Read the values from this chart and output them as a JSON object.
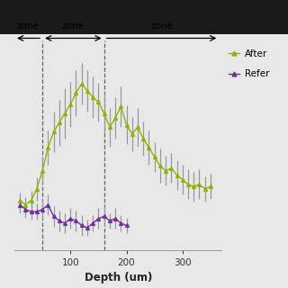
{
  "after_x": [
    10,
    20,
    30,
    40,
    50,
    60,
    70,
    80,
    90,
    100,
    110,
    120,
    130,
    140,
    150,
    160,
    170,
    180,
    190,
    200,
    210,
    220,
    230,
    240,
    250,
    260,
    270,
    280,
    290,
    300,
    310,
    320,
    330,
    340,
    350
  ],
  "after_y": [
    4.5,
    4.3,
    4.5,
    5.0,
    5.8,
    6.8,
    7.5,
    7.9,
    8.3,
    8.7,
    9.2,
    9.6,
    9.3,
    9.0,
    8.8,
    8.3,
    7.7,
    8.1,
    8.6,
    7.8,
    7.4,
    7.7,
    7.2,
    6.8,
    6.4,
    6.0,
    5.8,
    5.9,
    5.6,
    5.4,
    5.2,
    5.1,
    5.2,
    5.0,
    5.1
  ],
  "after_err": [
    0.35,
    0.35,
    0.4,
    0.5,
    0.6,
    0.75,
    0.9,
    1.0,
    1.1,
    1.0,
    1.0,
    0.9,
    0.9,
    0.9,
    0.85,
    0.85,
    0.85,
    0.9,
    0.9,
    0.85,
    0.75,
    0.85,
    0.75,
    0.75,
    0.65,
    0.75,
    0.65,
    0.65,
    0.65,
    0.65,
    0.65,
    0.65,
    0.65,
    0.55,
    0.55
  ],
  "ref_x": [
    10,
    20,
    30,
    40,
    50,
    60,
    70,
    80,
    90,
    100,
    110,
    120,
    130,
    140,
    150,
    160,
    170,
    180,
    190,
    200
  ],
  "ref_y": [
    4.3,
    4.1,
    4.0,
    4.0,
    4.1,
    4.3,
    3.8,
    3.6,
    3.5,
    3.7,
    3.6,
    3.4,
    3.3,
    3.5,
    3.7,
    3.8,
    3.6,
    3.7,
    3.5,
    3.4
  ],
  "ref_err": [
    0.35,
    0.35,
    0.35,
    0.35,
    0.45,
    0.45,
    0.45,
    0.45,
    0.45,
    0.45,
    0.45,
    0.45,
    0.35,
    0.35,
    0.45,
    0.45,
    0.35,
    0.45,
    0.35,
    0.35
  ],
  "after_color": "#8db600",
  "ref_color": "#7030a0",
  "vline1_x": 50,
  "vline2_x": 160,
  "xlabel": "Depth (um)",
  "xlim": [
    0,
    370
  ],
  "ylim": [
    2.3,
    11.5
  ],
  "xticks": [
    100,
    200,
    300
  ],
  "legend_labels": [
    "After",
    "Refer"
  ],
  "ecolor": "#999999",
  "dashed_color": "#666666",
  "background": "#e8e8e8",
  "top_bar_color": "#1a1a1a",
  "top_bar_height": 0.12
}
